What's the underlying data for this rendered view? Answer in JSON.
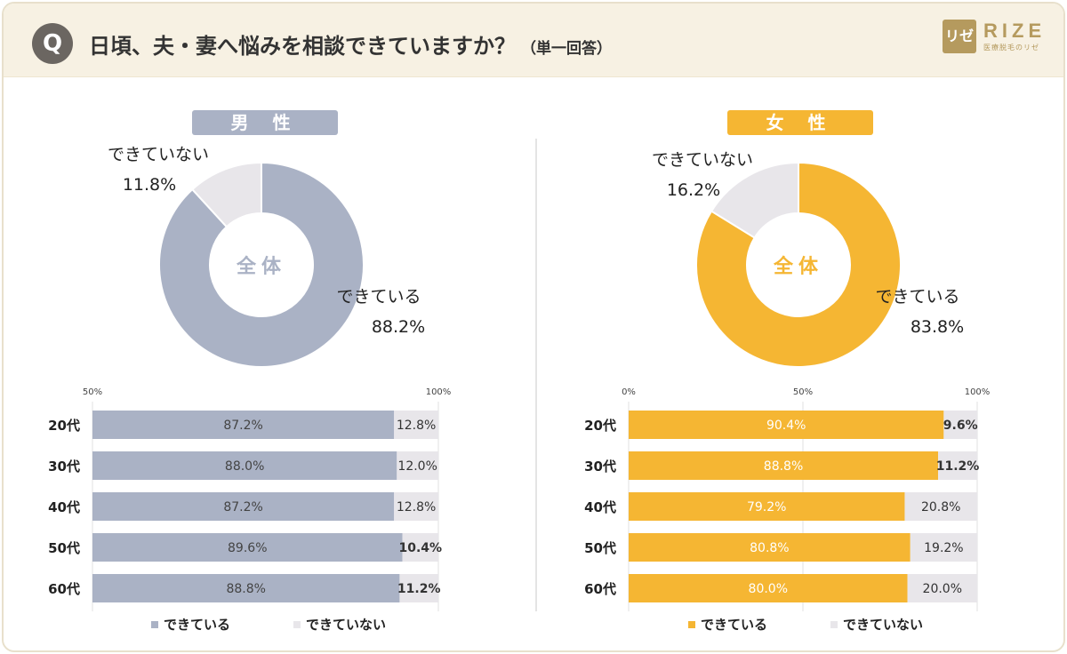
{
  "header": {
    "q_badge": "Q",
    "question": "日頃、夫・妻へ悩みを相談できていますか？",
    "answer_type": "（単一回答）",
    "logo_mark": "リゼ",
    "logo_name": "RIZE",
    "logo_sub": "医療脱毛のリゼ"
  },
  "colors": {
    "male": "#aab2c5",
    "female": "#f5b633",
    "no": "#e8e6ea"
  },
  "legend": {
    "yes": "できている",
    "no": "できていない"
  },
  "chart_data": [
    {
      "type": "pie",
      "panel": "male",
      "title": "男 性",
      "center_label": "全体",
      "slices": [
        {
          "label": "できている",
          "value": 88.2,
          "display": "88.2%"
        },
        {
          "label": "できていない",
          "value": 11.8,
          "display": "11.8%"
        }
      ]
    },
    {
      "type": "bar",
      "panel": "male",
      "orientation": "horizontal",
      "stacked": true,
      "categories": [
        "20代",
        "30代",
        "40代",
        "50代",
        "60代"
      ],
      "axis_ticks": [
        "50%",
        "100%"
      ],
      "xlim": [
        0,
        100
      ],
      "series": [
        {
          "name": "できている",
          "values": [
            87.2,
            88.0,
            87.2,
            89.6,
            88.8
          ],
          "labels": [
            "87.2%",
            "88.0%",
            "87.2%",
            "89.6%",
            "88.8%"
          ]
        },
        {
          "name": "できていない",
          "values": [
            12.8,
            12.0,
            12.8,
            10.4,
            11.2
          ],
          "labels": [
            "12.8%",
            "12.0%",
            "12.8%",
            "10.4%",
            "11.2%"
          ]
        }
      ]
    },
    {
      "type": "pie",
      "panel": "female",
      "title": "女 性",
      "center_label": "全体",
      "slices": [
        {
          "label": "できている",
          "value": 83.8,
          "display": "83.8%"
        },
        {
          "label": "できていない",
          "value": 16.2,
          "display": "16.2%"
        }
      ]
    },
    {
      "type": "bar",
      "panel": "female",
      "orientation": "horizontal",
      "stacked": true,
      "categories": [
        "20代",
        "30代",
        "40代",
        "50代",
        "60代"
      ],
      "axis_ticks": [
        "0%",
        "50%",
        "100%"
      ],
      "xlim": [
        0,
        100
      ],
      "series": [
        {
          "name": "できている",
          "values": [
            90.4,
            88.8,
            79.2,
            80.8,
            80.0
          ],
          "labels": [
            "90.4%",
            "88.8%",
            "79.2%",
            "80.8%",
            "80.0%"
          ]
        },
        {
          "name": "できていない",
          "values": [
            9.6,
            11.2,
            20.8,
            19.2,
            20.0
          ],
          "labels": [
            "9.6%",
            "11.2%",
            "20.8%",
            "19.2%",
            "20.0%"
          ]
        }
      ]
    }
  ]
}
